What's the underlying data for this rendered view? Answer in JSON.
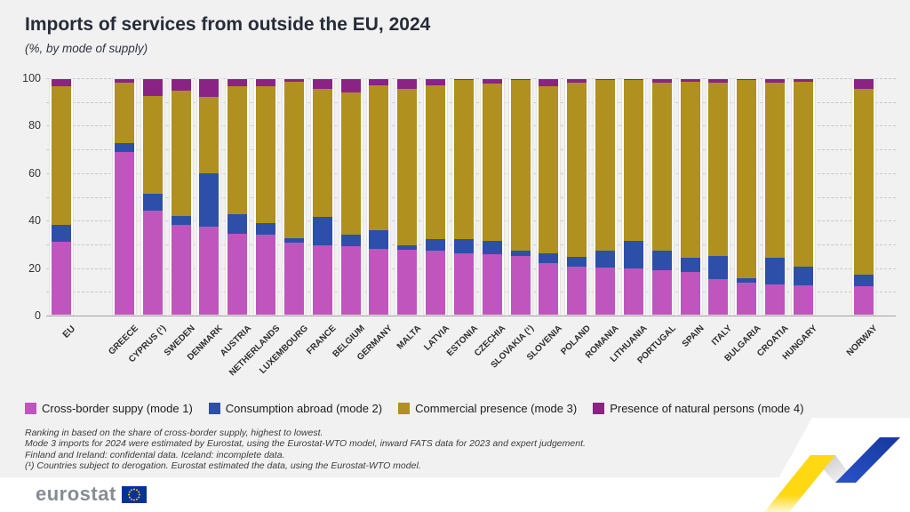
{
  "header": {
    "title": "Imports of services from outside the EU, 2024",
    "subtitle": "(%, by mode of supply)"
  },
  "chart_data": {
    "type": "bar",
    "stacked": true,
    "unit": "%",
    "ylim": [
      0,
      100
    ],
    "yticks": [
      0,
      20,
      40,
      60,
      80,
      100
    ],
    "grid": "dashed horizontal every 10",
    "legend_position": "bottom",
    "group_gaps_after_categories": [
      "EU",
      "HUNGARY"
    ],
    "background": "#f1f1f1",
    "bar_backdrop": "#fcfcfc",
    "categories": [
      "EU",
      "GREECE",
      "CYPRUS (¹)",
      "SWEDEN",
      "DENMARK",
      "AUSTRIA",
      "NETHERLANDS",
      "LUXEMBOURG",
      "FRANCE",
      "BELGIUM",
      "GERMANY",
      "MALTA",
      "LATVIA",
      "ESTONIA",
      "CZECHIA",
      "SLOVAKIA (¹)",
      "SLOVENIA",
      "POLAND",
      "ROMANIA",
      "LITHUANIA",
      "PORTUGAL",
      "SPAIN",
      "ITALY",
      "BULGARIA",
      "CROATIA",
      "HUNGARY",
      "NORWAY"
    ],
    "series": [
      {
        "name": "Cross-border suppy (mode 1)",
        "color": "#c055be",
        "values": [
          31,
          69,
          44,
          38,
          37.5,
          34.5,
          34,
          30.5,
          29.5,
          29,
          28,
          27.5,
          27,
          26,
          25.5,
          25,
          22,
          20.5,
          20,
          19.5,
          19,
          18,
          15,
          13.5,
          13,
          12.5,
          12
        ]
      },
      {
        "name": "Consumption abroad (mode 2)",
        "color": "#2d4fa9",
        "values": [
          7,
          4,
          7.5,
          4,
          22.5,
          8,
          5,
          2,
          12,
          5,
          8,
          2,
          5,
          6,
          6,
          2,
          4,
          4,
          7,
          12,
          8,
          6,
          10,
          2,
          11,
          8,
          5
        ]
      },
      {
        "name": "Commercial presence (mode 3)",
        "color": "#b0901e",
        "values": [
          59,
          25.5,
          41.5,
          53,
          32.5,
          54.5,
          58,
          66.5,
          54.5,
          60.5,
          61.5,
          66.5,
          65.5,
          67.5,
          66.5,
          72.5,
          71,
          74,
          72.5,
          68,
          71.5,
          75,
          73.5,
          84,
          74.5,
          78.5,
          79
        ]
      },
      {
        "name": "Presence of natural persons (mode 4)",
        "color": "#8b2384",
        "values": [
          3,
          1.5,
          7,
          5,
          7.5,
          3,
          3,
          1,
          4,
          5.5,
          2.5,
          4,
          2.5,
          0.5,
          2,
          0.5,
          3,
          1.5,
          0.5,
          0.5,
          1.5,
          1,
          1.5,
          0.5,
          1.5,
          1,
          4
        ]
      }
    ]
  },
  "footnotes": [
    "Ranking in based on the share of cross-border supply, highest to lowest.",
    "Mode 3 imports for 2024 were estimated by Eurostat, using the Eurostat-WTO model, inward FATS data for 2023 and expert judgement.",
    "Finland and Ireland: confidental data. Iceland: incomplete data.",
    "(¹) Countries subject to derogation. Eurostat estimated the data, using the Eurostat-WTO model."
  ],
  "footer": {
    "logo_text": "eurostat",
    "flag_blue": "#003399",
    "flag_star_yellow": "#ffcc00",
    "ribbon_yellow": "#ffd814",
    "ribbon_blue": "#1f44bb"
  }
}
